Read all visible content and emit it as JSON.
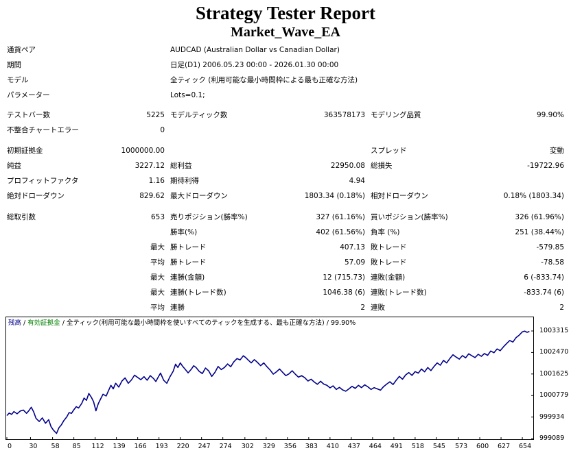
{
  "report": {
    "title": "Strategy Tester Report",
    "ea_name": "Market_Wave_EA"
  },
  "settings": [
    {
      "label": "通貨ペア",
      "value": "AUDCAD (Australian Dollar vs Canadian Dollar)"
    },
    {
      "label": "期間",
      "value": "日足(D1) 2006.05.23 00:00 - 2026.01.30 00:00"
    },
    {
      "label": "モデル",
      "value": "全ティック (利用可能な最小時間枠による最も正確な方法)"
    },
    {
      "label": "パラメーター",
      "value": "Lots=0.1;"
    }
  ],
  "stats": {
    "bars_label": "テストバー数",
    "bars": "5225",
    "ticks_label": "モデルティック数",
    "ticks": "363578173",
    "quality_label": "モデリング品質",
    "quality": "99.90%",
    "mismatch_label": "不整合チャートエラー",
    "mismatch": "0",
    "deposit_label": "初期証拠金",
    "deposit": "1000000.00",
    "spread_label": "スプレッド",
    "spread": "変動",
    "net_label": "純益",
    "net": "3227.12",
    "gross_profit_label": "総利益",
    "gross_profit": "22950.08",
    "gross_loss_label": "総損失",
    "gross_loss": "-19722.96",
    "pf_label": "プロフィットファクタ",
    "pf": "1.16",
    "expected_label": "期待利得",
    "expected": "4.94",
    "abs_dd_label": "絶対ドローダウン",
    "abs_dd": "829.62",
    "max_dd_label": "最大ドローダウン",
    "max_dd": "1803.34 (0.18%)",
    "rel_dd_label": "相対ドローダウン",
    "rel_dd": "0.18% (1803.34)",
    "total_trades_label": "総取引数",
    "total_trades": "653",
    "short_label": "売りポジション(勝率%)",
    "short": "327 (61.16%)",
    "long_label": "買いポジション(勝率%)",
    "long": "326 (61.96%)",
    "win_label": "勝率(%)",
    "win": "402 (61.56%)",
    "loss_label": "負率 (%)",
    "loss": "251 (38.44%)",
    "max_label": "最大",
    "avg_label": "平均",
    "largest_win_label": "勝トレード",
    "largest_win": "407.13",
    "largest_loss_label": "敗トレード",
    "largest_loss": "-579.85",
    "avg_win_label": "勝トレード",
    "avg_win": "57.09",
    "avg_loss_label": "敗トレード",
    "avg_loss": "-78.58",
    "max_cons_wins_label": "連勝(金額)",
    "max_cons_wins": "12 (715.73)",
    "max_cons_losses_label": "連敗(金額)",
    "max_cons_losses": "6 (-833.74)",
    "max_cons_profit_label": "連勝(トレード数)",
    "max_cons_profit": "1046.38 (6)",
    "max_cons_loss_label": "連敗(トレード数)",
    "max_cons_loss": "-833.74 (6)",
    "avg_cons_wins_label": "連勝",
    "avg_cons_wins": "2",
    "avg_cons_losses_label": "連敗",
    "avg_cons_losses": "2"
  },
  "colors": {
    "series": "#00008b",
    "equity": "#008000",
    "axis": "#000000"
  },
  "chart_data": {
    "type": "line",
    "legend": {
      "balance": "残高",
      "sep1": " / ",
      "equity": "有効証拠金",
      "sep2": " / ",
      "model": "全ティック(利用可能な最小時間枠を使いすべてのティックを生成する、最も正確な方法)",
      "sep3": " / ",
      "quality": "99.90%"
    },
    "series": [
      {
        "values": [
          [
            0,
            999990
          ],
          [
            3,
            1000090
          ],
          [
            6,
            1000040
          ],
          [
            9,
            1000150
          ],
          [
            13,
            1000060
          ],
          [
            17,
            1000170
          ],
          [
            21,
            1000210
          ],
          [
            25,
            1000080
          ],
          [
            28,
            1000190
          ],
          [
            31,
            1000320
          ],
          [
            34,
            1000140
          ],
          [
            37,
            999880
          ],
          [
            41,
            999760
          ],
          [
            45,
            999900
          ],
          [
            49,
            999690
          ],
          [
            53,
            999830
          ],
          [
            56,
            999560
          ],
          [
            59,
            999420
          ],
          [
            63,
            999290
          ],
          [
            66,
            999510
          ],
          [
            69,
            999620
          ],
          [
            72,
            999780
          ],
          [
            76,
            999940
          ],
          [
            79,
            1000110
          ],
          [
            82,
            1000080
          ],
          [
            85,
            1000220
          ],
          [
            88,
            1000340
          ],
          [
            91,
            1000290
          ],
          [
            95,
            1000470
          ],
          [
            98,
            1000680
          ],
          [
            101,
            1000590
          ],
          [
            104,
            1000860
          ],
          [
            107,
            1000720
          ],
          [
            110,
            1000540
          ],
          [
            113,
            1000180
          ],
          [
            116,
            1000460
          ],
          [
            119,
            1000650
          ],
          [
            122,
            1000830
          ],
          [
            126,
            1000760
          ],
          [
            129,
            1000970
          ],
          [
            132,
            1001180
          ],
          [
            135,
            1001040
          ],
          [
            138,
            1001260
          ],
          [
            142,
            1001110
          ],
          [
            146,
            1001350
          ],
          [
            150,
            1001470
          ],
          [
            154,
            1001260
          ],
          [
            158,
            1001390
          ],
          [
            162,
            1001580
          ],
          [
            166,
            1001490
          ],
          [
            170,
            1001400
          ],
          [
            174,
            1001520
          ],
          [
            178,
            1001380
          ],
          [
            182,
            1001560
          ],
          [
            186,
            1001450
          ],
          [
            189,
            1001330
          ],
          [
            192,
            1001500
          ],
          [
            195,
            1001660
          ],
          [
            199,
            1001380
          ],
          [
            203,
            1001260
          ],
          [
            207,
            1001520
          ],
          [
            211,
            1001730
          ],
          [
            214,
            1002010
          ],
          [
            217,
            1001880
          ],
          [
            220,
            1002060
          ],
          [
            223,
            1001930
          ],
          [
            226,
            1001820
          ],
          [
            230,
            1001670
          ],
          [
            234,
            1001810
          ],
          [
            237,
            1001950
          ],
          [
            240,
            1001880
          ],
          [
            244,
            1001730
          ],
          [
            248,
            1001640
          ],
          [
            252,
            1001860
          ],
          [
            256,
            1001750
          ],
          [
            260,
            1001530
          ],
          [
            264,
            1001690
          ],
          [
            268,
            1001920
          ],
          [
            272,
            1001800
          ],
          [
            276,
            1001880
          ],
          [
            280,
            1002020
          ],
          [
            284,
            1001910
          ],
          [
            288,
            1002100
          ],
          [
            292,
            1002230
          ],
          [
            296,
            1002180
          ],
          [
            300,
            1002340
          ],
          [
            303,
            1002270
          ],
          [
            306,
            1002180
          ],
          [
            310,
            1002060
          ],
          [
            314,
            1002190
          ],
          [
            318,
            1002080
          ],
          [
            322,
            1001950
          ],
          [
            326,
            1002060
          ],
          [
            330,
            1001910
          ],
          [
            334,
            1001780
          ],
          [
            338,
            1001620
          ],
          [
            342,
            1001710
          ],
          [
            346,
            1001820
          ],
          [
            350,
            1001690
          ],
          [
            354,
            1001560
          ],
          [
            358,
            1001630
          ],
          [
            362,
            1001750
          ],
          [
            366,
            1001620
          ],
          [
            370,
            1001500
          ],
          [
            374,
            1001560
          ],
          [
            378,
            1001480
          ],
          [
            382,
            1001350
          ],
          [
            386,
            1001420
          ],
          [
            390,
            1001310
          ],
          [
            394,
            1001220
          ],
          [
            398,
            1001340
          ],
          [
            402,
            1001230
          ],
          [
            406,
            1001180
          ],
          [
            410,
            1001080
          ],
          [
            414,
            1001160
          ],
          [
            418,
            1001020
          ],
          [
            422,
            1001100
          ],
          [
            426,
            1001000
          ],
          [
            430,
            1000950
          ],
          [
            434,
            1001040
          ],
          [
            438,
            1001140
          ],
          [
            442,
            1001060
          ],
          [
            446,
            1001180
          ],
          [
            450,
            1001090
          ],
          [
            454,
            1001200
          ],
          [
            458,
            1001120
          ],
          [
            462,
            1001020
          ],
          [
            466,
            1001090
          ],
          [
            470,
            1001040
          ],
          [
            474,
            1000990
          ],
          [
            478,
            1001130
          ],
          [
            482,
            1001230
          ],
          [
            486,
            1001320
          ],
          [
            490,
            1001210
          ],
          [
            494,
            1001380
          ],
          [
            498,
            1001530
          ],
          [
            502,
            1001420
          ],
          [
            506,
            1001590
          ],
          [
            510,
            1001680
          ],
          [
            514,
            1001570
          ],
          [
            518,
            1001720
          ],
          [
            522,
            1001660
          ],
          [
            526,
            1001820
          ],
          [
            530,
            1001710
          ],
          [
            534,
            1001880
          ],
          [
            538,
            1001760
          ],
          [
            542,
            1001920
          ],
          [
            546,
            1002060
          ],
          [
            550,
            1001970
          ],
          [
            554,
            1002160
          ],
          [
            558,
            1002060
          ],
          [
            562,
            1002230
          ],
          [
            566,
            1002380
          ],
          [
            570,
            1002290
          ],
          [
            574,
            1002210
          ],
          [
            578,
            1002350
          ],
          [
            582,
            1002260
          ],
          [
            586,
            1002420
          ],
          [
            590,
            1002340
          ],
          [
            594,
            1002270
          ],
          [
            598,
            1002400
          ],
          [
            602,
            1002320
          ],
          [
            606,
            1002430
          ],
          [
            610,
            1002360
          ],
          [
            614,
            1002530
          ],
          [
            618,
            1002460
          ],
          [
            622,
            1002610
          ],
          [
            626,
            1002540
          ],
          [
            630,
            1002690
          ],
          [
            634,
            1002820
          ],
          [
            638,
            1002940
          ],
          [
            642,
            1002880
          ],
          [
            646,
            1003050
          ],
          [
            650,
            1003150
          ],
          [
            654,
            1003280
          ],
          [
            657,
            1003310
          ],
          [
            660,
            1003260
          ],
          [
            663,
            1003300
          ]
        ]
      }
    ],
    "y_ticks": [
      "1003315",
      "1002470",
      "1001625",
      "1000779",
      "999934",
      "999089"
    ],
    "x_ticks": [
      "0",
      "30",
      "58",
      "85",
      "112",
      "139",
      "166",
      "193",
      "220",
      "247",
      "274",
      "302",
      "329",
      "356",
      "383",
      "410",
      "437",
      "464",
      "491",
      "518",
      "545",
      "573",
      "600",
      "627",
      "654"
    ],
    "ylim": [
      999089,
      1003315
    ],
    "xlim": [
      0,
      667
    ]
  }
}
